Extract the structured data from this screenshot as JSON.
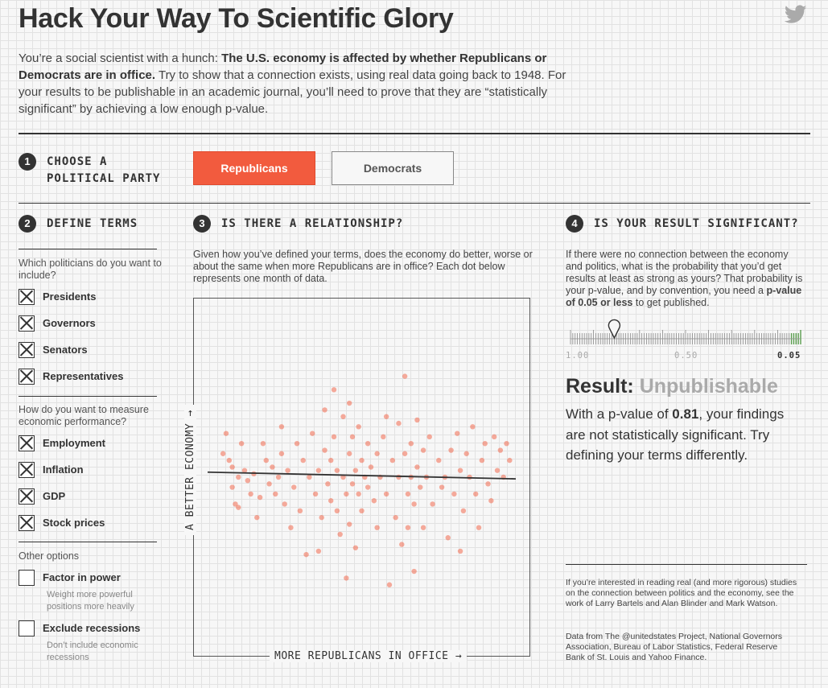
{
  "header": {
    "title": "Hack Your Way To Scientific Glory",
    "twitter_icon": "twitter-icon"
  },
  "intro": {
    "lead": "You’re a social scientist with a hunch: ",
    "hypothesis": "The U.S. economy is affected by whether Republicans or Democrats are in office.",
    "rest": " Try to show that a connection exists, using real data going back to 1948. For your results to be publishable in an academic journal, you’ll need to prove that they are “statistically significant” by achieving a low enough p-value."
  },
  "step1": {
    "number": "1",
    "label_line1": "CHOOSE A",
    "label_line2": "POLITICAL PARTY",
    "parties": [
      {
        "label": "Republicans",
        "selected": true
      },
      {
        "label": "Democrats",
        "selected": false
      }
    ]
  },
  "step2": {
    "number": "2",
    "label": "DEFINE TERMS",
    "politicians_question": "Which politicians do you want to include?",
    "politicians": [
      {
        "label": "Presidents",
        "checked": true
      },
      {
        "label": "Governors",
        "checked": true
      },
      {
        "label": "Senators",
        "checked": true
      },
      {
        "label": "Representatives",
        "checked": true
      }
    ],
    "measure_question": "How do you want to measure economic performance?",
    "measures": [
      {
        "label": "Employment",
        "checked": true
      },
      {
        "label": "Inflation",
        "checked": true
      },
      {
        "label": "GDP",
        "checked": true
      },
      {
        "label": "Stock prices",
        "checked": true
      }
    ],
    "other_heading": "Other options",
    "other": [
      {
        "label": "Factor in power",
        "checked": false,
        "note": "Weight more powerful positions more heavily"
      },
      {
        "label": "Exclude recessions",
        "checked": false,
        "note": "Don’t include economic recessions"
      }
    ]
  },
  "step3": {
    "number": "3",
    "label": "IS THERE A RELATIONSHIP?",
    "description": "Given how you’ve defined your terms, does the economy do better, worse or about the same when more Republicans are in office? Each dot below represents one month of data.",
    "x_axis_label": "MORE REPUBLICANS IN OFFICE →",
    "y_axis_label": "A BETTER ECONOMY →"
  },
  "step4": {
    "number": "4",
    "label": "IS YOUR RESULT SIGNIFICANT?",
    "description_a": "If there were no connection between the economy and politics, what is the probability that you’d get results at least as strong as yours? That probability is your p-value, and by convention, you need a ",
    "description_bold": "p-value of 0.05 or less",
    "description_b": " to get published.",
    "slider": {
      "value": 0.81,
      "labels": [
        "1.00",
        "0.50",
        "0.05"
      ],
      "threshold_color": "#5a9e4f",
      "pin_icon": "map-pin-icon"
    },
    "result_prefix": "Result:",
    "result_status": "Unpublishable",
    "result_text_a": "With a p-value of ",
    "result_pvalue": "0.81",
    "result_text_b": ", your findings are not statistically significant. Try defining your terms differently.",
    "note": "If you’re interested in reading real (and more rigorous) studies on the connection between politics and the economy, see the work of Larry Bartels and Alan Blinder and Mark Watson.",
    "source": "Data from The @unitedstates Project, National Governors Association, Bureau of Labor Statistics, Federal Reserve Bank of St. Louis and Yahoo Finance."
  },
  "colors": {
    "accent": "#f25b3e",
    "dot": "#f25b3e",
    "text": "#333333",
    "muted": "#aaaaaa"
  },
  "chart_data": {
    "type": "scatter",
    "xlabel": "MORE REPUBLICANS IN OFFICE →",
    "ylabel": "A BETTER ECONOMY →",
    "trendline": {
      "y_start": 0.515,
      "y_end": 0.495
    },
    "points": [
      [
        0.05,
        0.57
      ],
      [
        0.06,
        0.63
      ],
      [
        0.07,
        0.55
      ],
      [
        0.08,
        0.53
      ],
      [
        0.08,
        0.47
      ],
      [
        0.09,
        0.42
      ],
      [
        0.1,
        0.5
      ],
      [
        0.1,
        0.41
      ],
      [
        0.11,
        0.6
      ],
      [
        0.12,
        0.52
      ],
      [
        0.13,
        0.49
      ],
      [
        0.14,
        0.45
      ],
      [
        0.15,
        0.51
      ],
      [
        0.16,
        0.38
      ],
      [
        0.17,
        0.44
      ],
      [
        0.18,
        0.6
      ],
      [
        0.19,
        0.55
      ],
      [
        0.2,
        0.48
      ],
      [
        0.21,
        0.53
      ],
      [
        0.22,
        0.45
      ],
      [
        0.23,
        0.5
      ],
      [
        0.24,
        0.57
      ],
      [
        0.25,
        0.42
      ],
      [
        0.26,
        0.52
      ],
      [
        0.27,
        0.35
      ],
      [
        0.28,
        0.47
      ],
      [
        0.29,
        0.6
      ],
      [
        0.3,
        0.4
      ],
      [
        0.31,
        0.55
      ],
      [
        0.32,
        0.27
      ],
      [
        0.33,
        0.5
      ],
      [
        0.34,
        0.63
      ],
      [
        0.35,
        0.45
      ],
      [
        0.36,
        0.52
      ],
      [
        0.37,
        0.38
      ],
      [
        0.38,
        0.7
      ],
      [
        0.38,
        0.58
      ],
      [
        0.39,
        0.48
      ],
      [
        0.4,
        0.55
      ],
      [
        0.4,
        0.43
      ],
      [
        0.41,
        0.76
      ],
      [
        0.41,
        0.62
      ],
      [
        0.42,
        0.52
      ],
      [
        0.42,
        0.4
      ],
      [
        0.43,
        0.33
      ],
      [
        0.44,
        0.68
      ],
      [
        0.44,
        0.5
      ],
      [
        0.45,
        0.45
      ],
      [
        0.45,
        0.2
      ],
      [
        0.46,
        0.57
      ],
      [
        0.46,
        0.36
      ],
      [
        0.47,
        0.62
      ],
      [
        0.47,
        0.48
      ],
      [
        0.48,
        0.52
      ],
      [
        0.48,
        0.29
      ],
      [
        0.49,
        0.65
      ],
      [
        0.49,
        0.45
      ],
      [
        0.5,
        0.55
      ],
      [
        0.5,
        0.4
      ],
      [
        0.51,
        0.5
      ],
      [
        0.52,
        0.6
      ],
      [
        0.52,
        0.47
      ],
      [
        0.53,
        0.53
      ],
      [
        0.54,
        0.43
      ],
      [
        0.55,
        0.57
      ],
      [
        0.55,
        0.35
      ],
      [
        0.56,
        0.5
      ],
      [
        0.57,
        0.62
      ],
      [
        0.58,
        0.45
      ],
      [
        0.59,
        0.18
      ],
      [
        0.6,
        0.55
      ],
      [
        0.61,
        0.38
      ],
      [
        0.62,
        0.66
      ],
      [
        0.62,
        0.5
      ],
      [
        0.63,
        0.3
      ],
      [
        0.64,
        0.8
      ],
      [
        0.64,
        0.57
      ],
      [
        0.65,
        0.45
      ],
      [
        0.65,
        0.35
      ],
      [
        0.66,
        0.6
      ],
      [
        0.66,
        0.5
      ],
      [
        0.67,
        0.22
      ],
      [
        0.67,
        0.42
      ],
      [
        0.68,
        0.67
      ],
      [
        0.68,
        0.53
      ],
      [
        0.69,
        0.47
      ],
      [
        0.7,
        0.58
      ],
      [
        0.71,
        0.5
      ],
      [
        0.72,
        0.62
      ],
      [
        0.73,
        0.42
      ],
      [
        0.75,
        0.55
      ],
      [
        0.76,
        0.47
      ],
      [
        0.77,
        0.5
      ],
      [
        0.78,
        0.32
      ],
      [
        0.79,
        0.58
      ],
      [
        0.8,
        0.45
      ],
      [
        0.81,
        0.63
      ],
      [
        0.82,
        0.52
      ],
      [
        0.83,
        0.4
      ],
      [
        0.84,
        0.57
      ],
      [
        0.85,
        0.5
      ],
      [
        0.86,
        0.65
      ],
      [
        0.87,
        0.45
      ],
      [
        0.88,
        0.35
      ],
      [
        0.89,
        0.55
      ],
      [
        0.9,
        0.6
      ],
      [
        0.91,
        0.48
      ],
      [
        0.92,
        0.43
      ],
      [
        0.93,
        0.62
      ],
      [
        0.94,
        0.52
      ],
      [
        0.95,
        0.58
      ],
      [
        0.96,
        0.5
      ],
      [
        0.97,
        0.6
      ],
      [
        0.98,
        0.55
      ],
      [
        0.24,
        0.65
      ],
      [
        0.36,
        0.28
      ],
      [
        0.58,
        0.68
      ],
      [
        0.7,
        0.35
      ],
      [
        0.82,
        0.28
      ],
      [
        0.46,
        0.72
      ]
    ]
  }
}
